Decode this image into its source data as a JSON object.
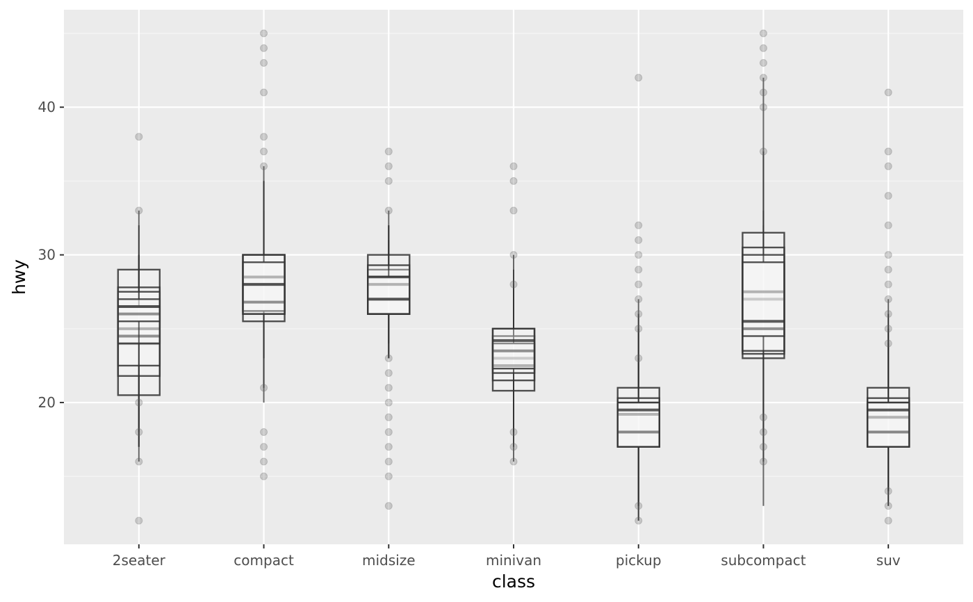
{
  "chart_data": {
    "type": "boxplot",
    "title": "",
    "xlabel": "class",
    "ylabel": "hwy",
    "ylim": [
      10.4,
      46.6
    ],
    "y_ticks": [
      20,
      30,
      40
    ],
    "y_tick_labels": [
      "20",
      "30",
      "40"
    ],
    "grid": true,
    "categories": [
      "2seater",
      "compact",
      "midsize",
      "minivan",
      "pickup",
      "subcompact",
      "suv"
    ],
    "groups": [
      {
        "category": "2seater",
        "boxes": [
          {
            "q1": 20.5,
            "median": 24.0,
            "q3": 29.0,
            "lower": 20.5,
            "upper": 29.0
          },
          {
            "q1": 21.8,
            "median": 25.0,
            "q3": 27.8,
            "lower": 16.0,
            "upper": 32.0
          },
          {
            "q1": 22.5,
            "median": 24.5,
            "q3": 26.5,
            "lower": 17.0,
            "upper": 30.0
          },
          {
            "q1": 24.0,
            "median": 26.0,
            "q3": 27.5,
            "lower": 17.0,
            "upper": 33.0
          },
          {
            "q1": 25.5,
            "median": 26.5,
            "q3": 27.0,
            "lower": 18.0,
            "upper": 30.0
          }
        ],
        "outliers": [
          38,
          33,
          20,
          18,
          16,
          12
        ]
      },
      {
        "category": "compact",
        "boxes": [
          {
            "q1": 25.5,
            "median": 28.0,
            "q3": 30.0,
            "lower": 20.0,
            "upper": 36.0
          },
          {
            "q1": 26.0,
            "median": 28.5,
            "q3": 30.0,
            "lower": 21.0,
            "upper": 35.0
          },
          {
            "q1": 26.2,
            "median": 26.8,
            "q3": 30.0,
            "lower": 23.0,
            "upper": 33.0
          },
          {
            "q1": 26.0,
            "median": 28.0,
            "q3": 29.5,
            "lower": 23.0,
            "upper": 35.0
          }
        ],
        "outliers": [
          45,
          44,
          43,
          41,
          38,
          37,
          36,
          21,
          18,
          17,
          16,
          15
        ]
      },
      {
        "category": "midsize",
        "boxes": [
          {
            "q1": 26.0,
            "median": 27.0,
            "q3": 30.0,
            "lower": 23.0,
            "upper": 33.0
          },
          {
            "q1": 26.0,
            "median": 28.0,
            "q3": 29.0,
            "lower": 23.0,
            "upper": 32.0
          },
          {
            "q1": 26.0,
            "median": 28.5,
            "q3": 29.3,
            "lower": 24.0,
            "upper": 32.0
          },
          {
            "q1": 26.0,
            "median": 27.0,
            "q3": 28.5,
            "lower": 23.0,
            "upper": 31.0
          }
        ],
        "outliers": [
          37,
          36,
          35,
          33,
          23,
          22,
          21,
          20,
          19,
          18,
          17,
          16,
          15,
          13
        ]
      },
      {
        "category": "minivan",
        "boxes": [
          {
            "q1": 20.8,
            "median": 23.0,
            "q3": 25.0,
            "lower": 16.0,
            "upper": 30.0
          },
          {
            "q1": 21.5,
            "median": 22.5,
            "q3": 24.5,
            "lower": 17.0,
            "upper": 27.0
          },
          {
            "q1": 22.0,
            "median": 23.5,
            "q3": 24.0,
            "lower": 18.0,
            "upper": 28.0
          },
          {
            "q1": 22.3,
            "median": 24.2,
            "q3": 25.0,
            "lower": 18.0,
            "upper": 29.0
          }
        ],
        "outliers": [
          36,
          35,
          33,
          30,
          28,
          18,
          17,
          16
        ]
      },
      {
        "category": "pickup",
        "boxes": [
          {
            "q1": 17.0,
            "median": 18.0,
            "q3": 21.0,
            "lower": 12.0,
            "upper": 27.0
          },
          {
            "q1": 17.0,
            "median": 19.2,
            "q3": 20.3,
            "lower": 13.0,
            "upper": 26.0
          },
          {
            "q1": 17.0,
            "median": 18.0,
            "q3": 20.0,
            "lower": 12.0,
            "upper": 25.0
          },
          {
            "q1": 17.0,
            "median": 19.5,
            "q3": 20.0,
            "lower": 13.0,
            "upper": 23.0
          }
        ],
        "outliers": [
          42,
          32,
          31,
          30,
          29,
          28,
          27,
          26,
          25,
          23,
          13,
          12
        ]
      },
      {
        "category": "subcompact",
        "boxes": [
          {
            "q1": 23.0,
            "median": 27.0,
            "q3": 31.5,
            "lower": 13.0,
            "upper": 42.0
          },
          {
            "q1": 23.3,
            "median": 27.5,
            "q3": 30.5,
            "lower": 16.0,
            "upper": 37.0
          },
          {
            "q1": 23.5,
            "median": 25.0,
            "q3": 30.0,
            "lower": 18.0,
            "upper": 33.0
          },
          {
            "q1": 24.5,
            "median": 25.5,
            "q3": 29.5,
            "lower": 19.0,
            "upper": 32.0
          }
        ],
        "outliers": [
          45,
          44,
          43,
          42,
          41,
          40,
          37,
          19,
          18,
          17,
          16
        ]
      },
      {
        "category": "suv",
        "boxes": [
          {
            "q1": 17.0,
            "median": 18.0,
            "q3": 21.0,
            "lower": 13.0,
            "upper": 27.0
          },
          {
            "q1": 17.0,
            "median": 19.0,
            "q3": 20.3,
            "lower": 14.0,
            "upper": 26.0
          },
          {
            "q1": 17.0,
            "median": 18.0,
            "q3": 20.0,
            "lower": 13.0,
            "upper": 25.0
          },
          {
            "q1": 17.0,
            "median": 19.5,
            "q3": 20.0,
            "lower": 14.0,
            "upper": 24.0
          }
        ],
        "outliers": [
          41,
          37,
          36,
          34,
          32,
          30,
          29,
          28,
          27,
          26,
          25,
          24,
          14,
          13,
          12
        ]
      }
    ]
  },
  "colors": {
    "panel_background": "#ebebeb",
    "grid_major": "#ffffff",
    "grid_minor": "#f5f5f5",
    "box_stroke": "#333333",
    "box_fill": "#f7f7f7",
    "outlier": "#666666",
    "tick_text": "#4d4d4d",
    "title_text": "#000000"
  }
}
